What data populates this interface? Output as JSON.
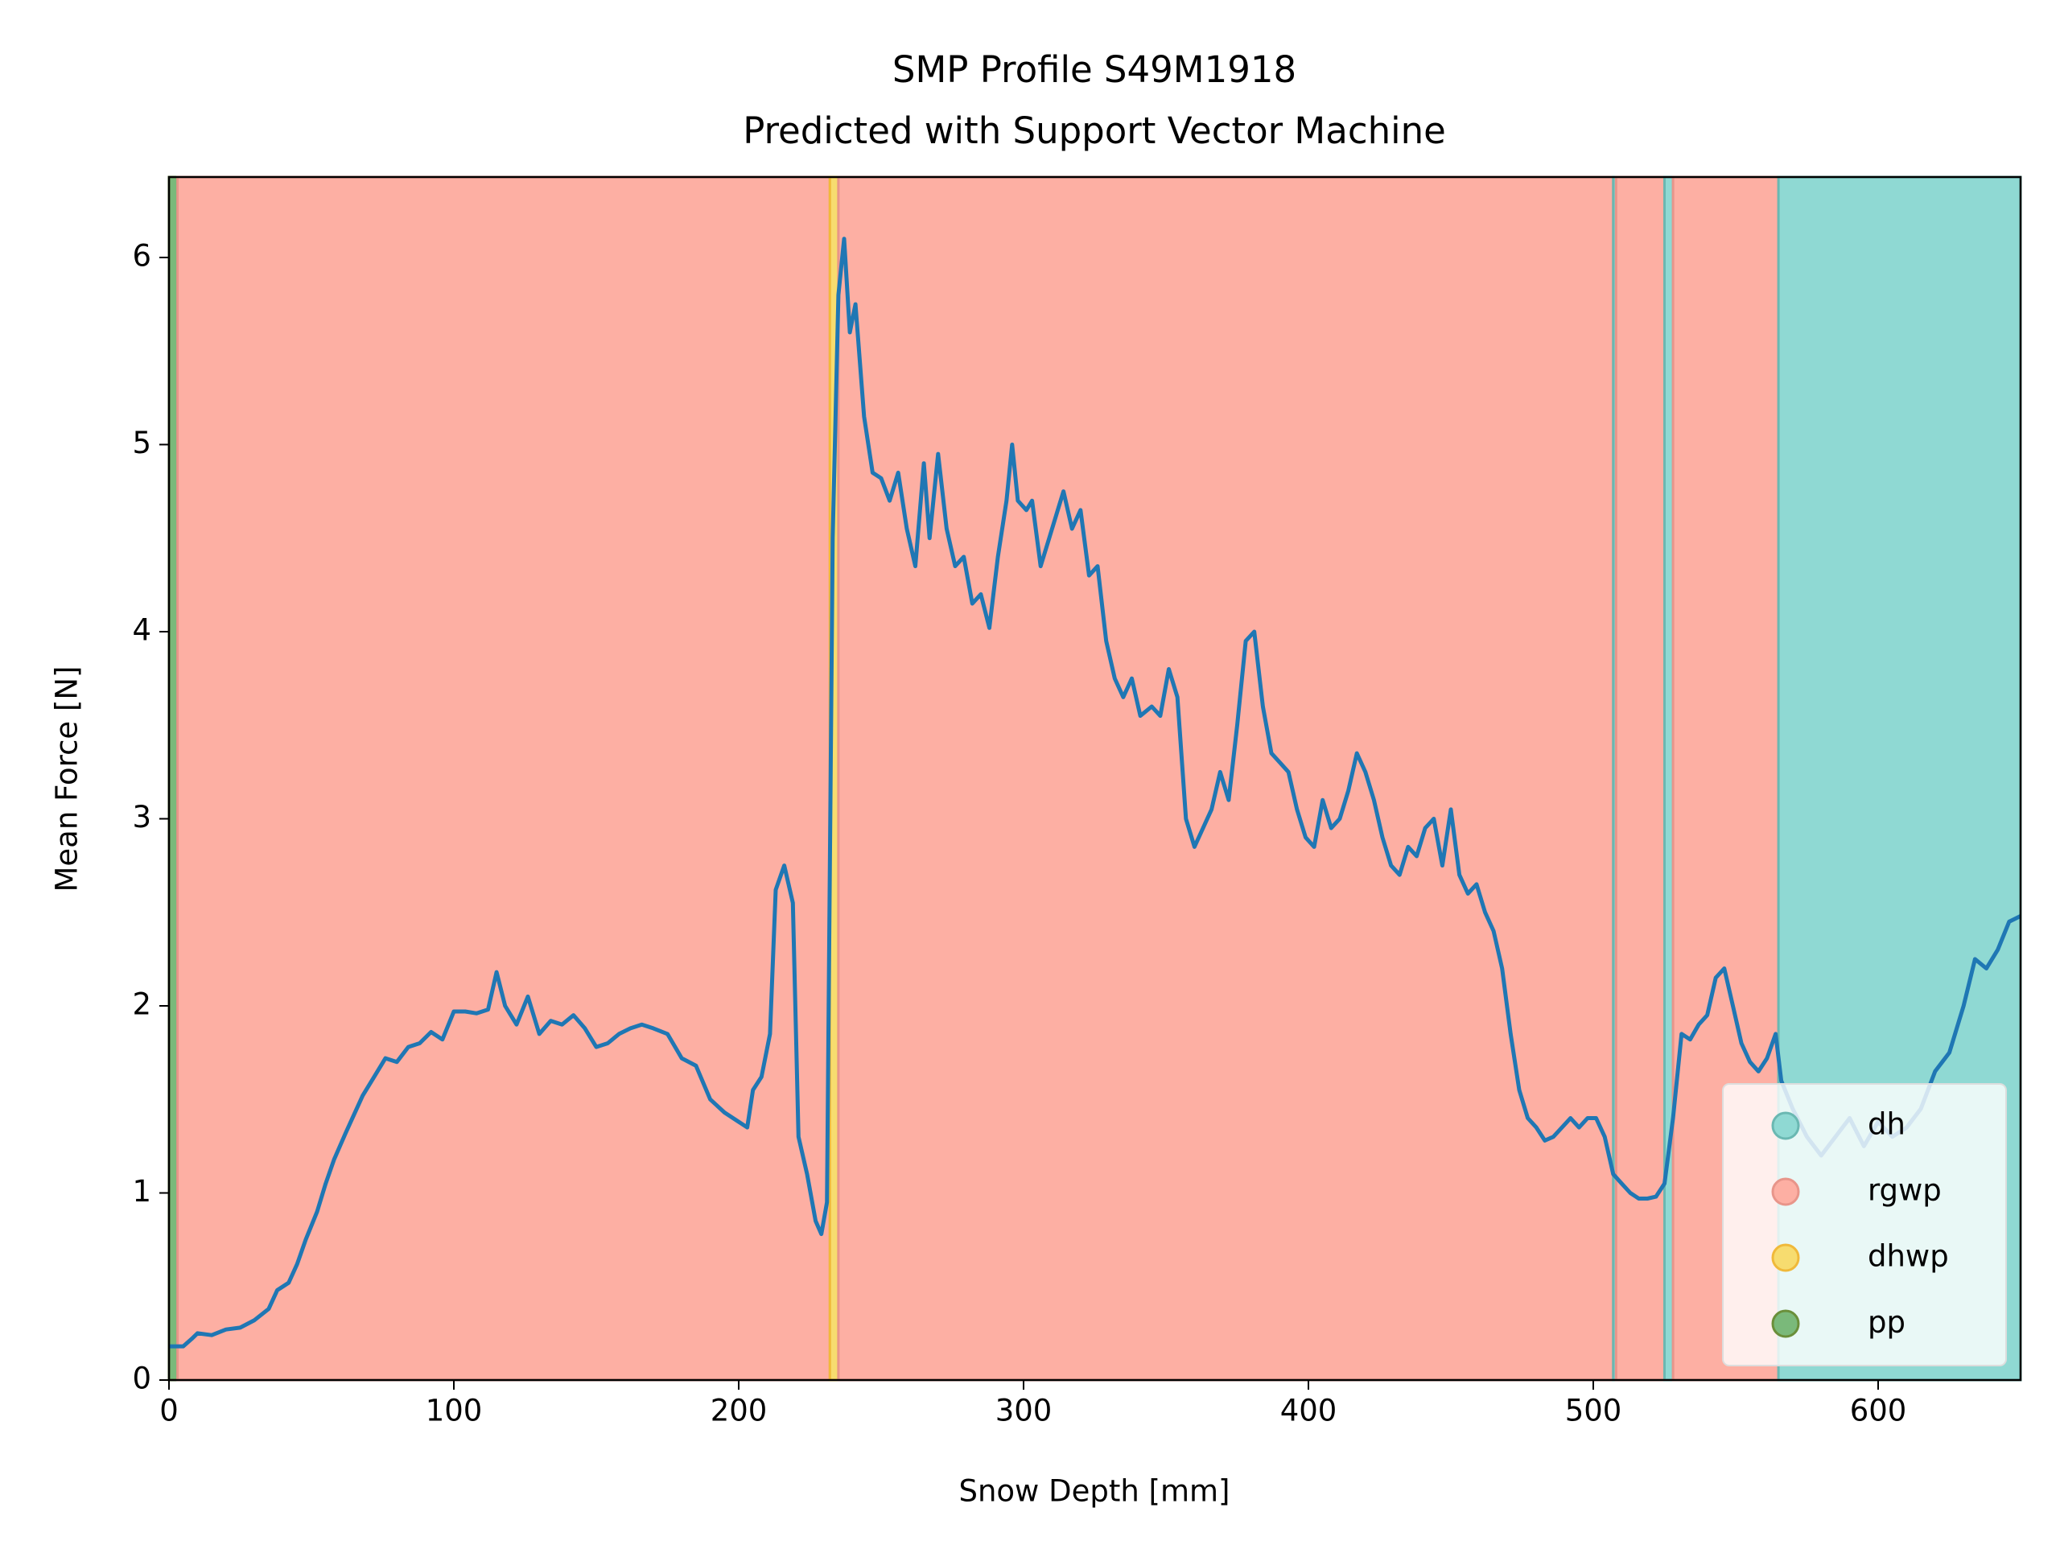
{
  "chart_data": {
    "type": "line",
    "title": "SMP Profile S49M1918",
    "subtitle": "Predicted with Support Vector Machine",
    "x_label": "Snow Depth [mm]",
    "y_label": "Mean Force [N]",
    "xlim": [
      0,
      650
    ],
    "ylim": [
      0,
      6.43
    ],
    "xticks": [
      0,
      100,
      200,
      300,
      400,
      500,
      600
    ],
    "yticks": [
      0,
      1,
      2,
      3,
      4,
      5,
      6
    ],
    "legend": "lower right",
    "color": "#1f77b4",
    "classes": [
      {
        "name": "dh",
        "color": "#8fd9d3",
        "edge": "#6ab8b2"
      },
      {
        "name": "rgwp",
        "color": "#fdafa3",
        "edge": "#e8958a"
      },
      {
        "name": "dhwp",
        "color": "#f7dc6f",
        "edge": "#f0b93a"
      },
      {
        "name": "pp",
        "color": "#7ab97a",
        "edge": "#6a8f3a"
      }
    ],
    "layers": [
      {
        "class": "pp",
        "start": 0,
        "end": 3
      },
      {
        "class": "rgwp",
        "start": 3,
        "end": 232
      },
      {
        "class": "dhwp",
        "start": 232,
        "end": 235
      },
      {
        "class": "rgwp",
        "start": 235,
        "end": 507
      },
      {
        "class": "dh",
        "start": 507,
        "end": 508
      },
      {
        "class": "rgwp",
        "start": 508,
        "end": 525
      },
      {
        "class": "dh",
        "start": 525,
        "end": 528
      },
      {
        "class": "rgwp",
        "start": 528,
        "end": 565
      },
      {
        "class": "dh",
        "start": 565,
        "end": 650
      }
    ],
    "x": [
      0,
      5,
      8,
      10,
      15,
      20,
      25,
      30,
      35,
      38,
      42,
      45,
      48,
      52,
      55,
      58,
      62,
      65,
      68,
      72,
      76,
      80,
      84,
      88,
      92,
      96,
      100,
      104,
      108,
      112,
      115,
      118,
      122,
      126,
      130,
      134,
      138,
      142,
      146,
      150,
      154,
      158,
      162,
      166,
      170,
      175,
      180,
      185,
      190,
      195,
      200,
      203,
      205,
      208,
      211,
      213,
      216,
      219,
      221,
      224,
      227,
      229,
      231,
      233,
      235,
      237,
      239,
      241,
      244,
      247,
      250,
      253,
      256,
      259,
      262,
      265,
      267,
      270,
      273,
      276,
      279,
      282,
      285,
      288,
      291,
      294,
      296,
      298,
      301,
      303,
      306,
      309,
      312,
      314,
      317,
      320,
      323,
      326,
      329,
      332,
      335,
      338,
      341,
      345,
      348,
      351,
      354,
      357,
      360,
      363,
      366,
      369,
      372,
      375,
      378,
      381,
      384,
      387,
      390,
      393,
      396,
      399,
      402,
      405,
      408,
      411,
      414,
      417,
      420,
      423,
      426,
      429,
      432,
      435,
      438,
      441,
      444,
      447,
      450,
      453,
      456,
      459,
      462,
      465,
      468,
      471,
      474,
      477,
      480,
      483,
      486,
      489,
      492,
      495,
      498,
      501,
      504,
      507,
      510,
      513,
      516,
      519,
      522,
      525,
      528,
      531,
      534,
      537,
      540,
      543,
      546,
      549,
      552,
      555,
      558,
      561,
      564,
      566,
      570,
      575,
      580,
      585,
      590,
      595,
      600,
      605,
      610,
      615,
      620,
      625,
      630,
      634,
      638,
      642,
      646,
      650
    ],
    "values": [
      0.18,
      0.18,
      0.22,
      0.25,
      0.24,
      0.27,
      0.28,
      0.32,
      0.38,
      0.48,
      0.52,
      0.62,
      0.75,
      0.9,
      1.05,
      1.18,
      1.32,
      1.42,
      1.52,
      1.62,
      1.72,
      1.7,
      1.78,
      1.8,
      1.86,
      1.82,
      1.97,
      1.97,
      1.96,
      1.98,
      2.18,
      2.0,
      1.9,
      2.05,
      1.85,
      1.92,
      1.9,
      1.95,
      1.88,
      1.78,
      1.8,
      1.85,
      1.88,
      1.9,
      1.88,
      1.85,
      1.72,
      1.68,
      1.5,
      1.43,
      1.38,
      1.35,
      1.55,
      1.62,
      1.85,
      2.62,
      2.75,
      2.55,
      1.3,
      1.1,
      0.85,
      0.78,
      0.95,
      4.5,
      5.8,
      6.1,
      5.6,
      5.75,
      5.15,
      4.85,
      4.82,
      4.7,
      4.85,
      4.55,
      4.35,
      4.9,
      4.5,
      4.95,
      4.55,
      4.35,
      4.4,
      4.15,
      4.2,
      4.02,
      4.4,
      4.7,
      5.0,
      4.7,
      4.65,
      4.7,
      4.35,
      4.5,
      4.65,
      4.75,
      4.55,
      4.65,
      4.3,
      4.35,
      3.95,
      3.75,
      3.65,
      3.75,
      3.55,
      3.6,
      3.55,
      3.8,
      3.65,
      3.0,
      2.85,
      2.95,
      3.05,
      3.25,
      3.1,
      3.5,
      3.95,
      4.0,
      3.6,
      3.35,
      3.3,
      3.25,
      3.05,
      2.9,
      2.85,
      3.1,
      2.95,
      3.0,
      3.15,
      3.35,
      3.25,
      3.1,
      2.9,
      2.75,
      2.7,
      2.85,
      2.8,
      2.95,
      3.0,
      2.75,
      3.05,
      2.7,
      2.6,
      2.65,
      2.5,
      2.4,
      2.2,
      1.85,
      1.55,
      1.4,
      1.35,
      1.28,
      1.3,
      1.35,
      1.4,
      1.35,
      1.4,
      1.4,
      1.3,
      1.1,
      1.05,
      1.0,
      0.97,
      0.97,
      0.98,
      1.05,
      1.4,
      1.85,
      1.82,
      1.9,
      1.95,
      2.15,
      2.2,
      2.0,
      1.8,
      1.7,
      1.65,
      1.72,
      1.85,
      1.6,
      1.45,
      1.3,
      1.2,
      1.3,
      1.4,
      1.25,
      1.38,
      1.3,
      1.35,
      1.45,
      1.65,
      1.75,
      2.0,
      2.25,
      2.2,
      2.3,
      2.45,
      2.48
    ]
  }
}
